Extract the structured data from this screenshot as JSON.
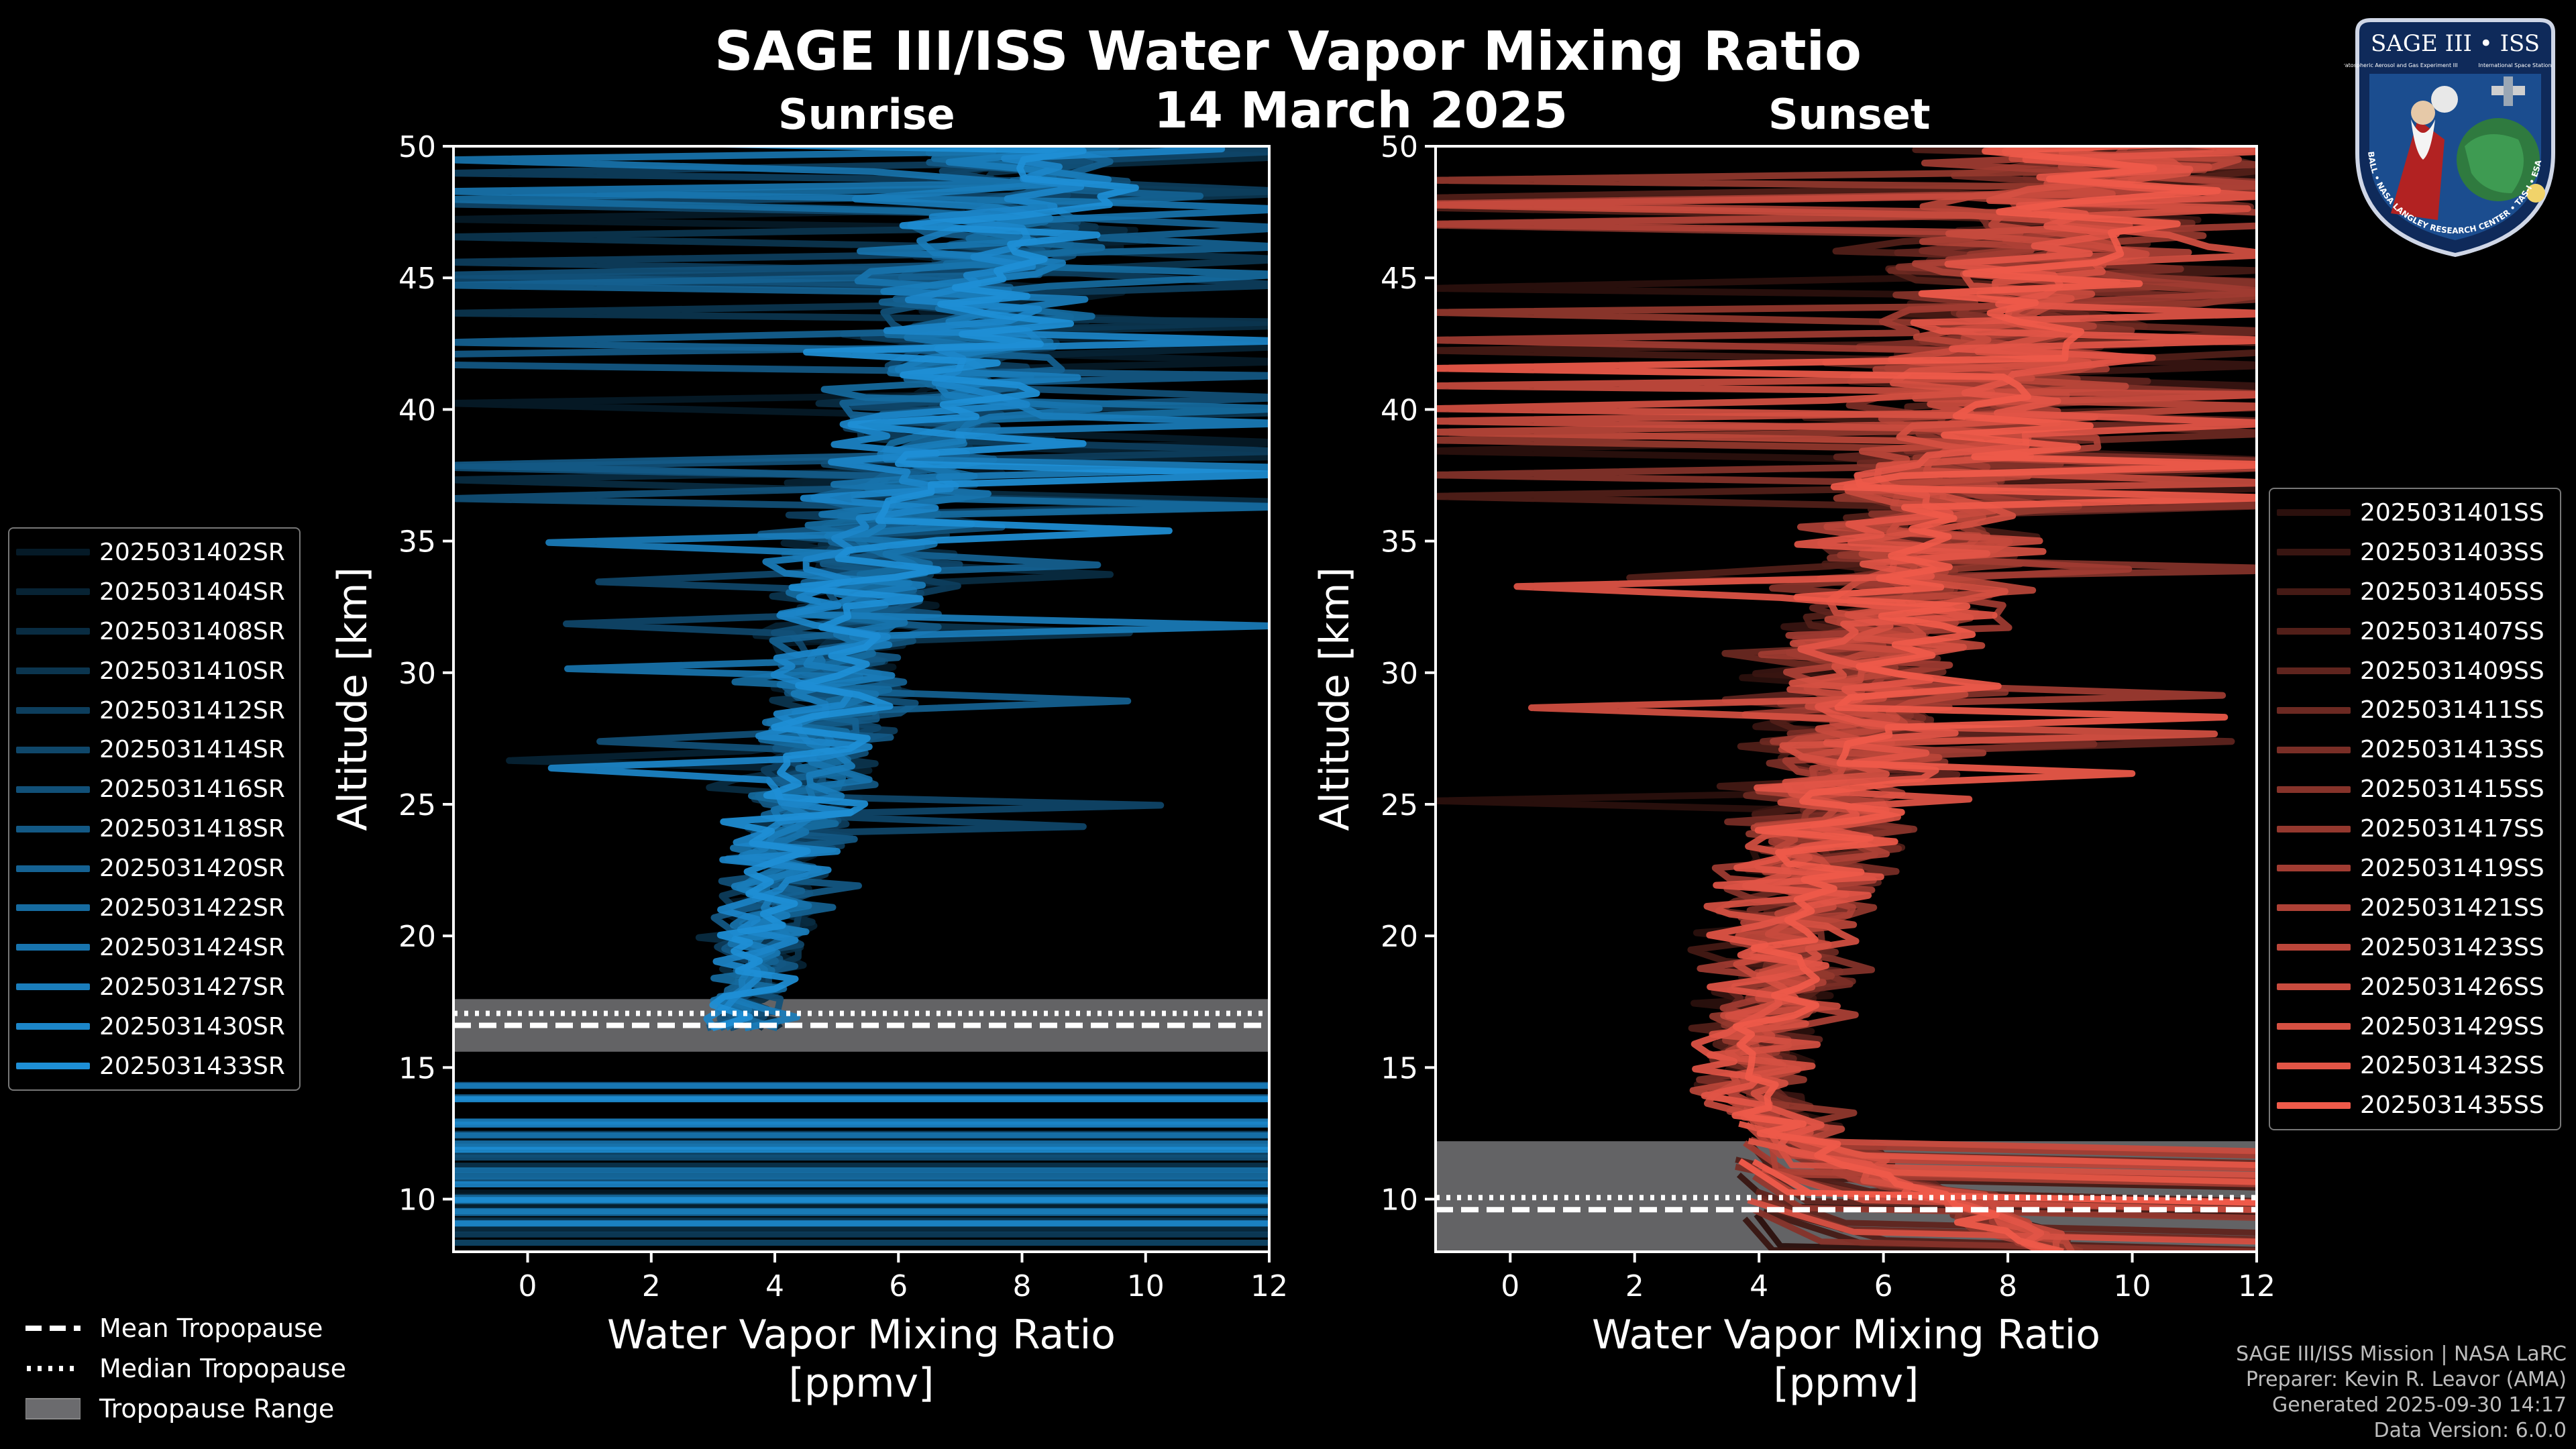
{
  "header": {
    "title": "SAGE III/ISS Water Vapor Mixing Ratio",
    "date": "14 March 2025",
    "sunrise_label": "Sunrise",
    "sunset_label": "Sunset"
  },
  "logo": {
    "text_top": "SAGE III • ISS",
    "text_sub": "Stratospheric Aerosol and Gas Experiment III",
    "text_sub2": "International Space Station",
    "ring_text": "BALL • NASA LANGLEY RESEARCH CENTER • TAS-I • ESA"
  },
  "colors": {
    "sunrise": "#1e8fd6",
    "sunset": "#ef5a4a",
    "tropopause_band": "#6b6b6e",
    "background": "#000000"
  },
  "tropo_legend": {
    "mean": "Mean Tropopause",
    "median": "Median Tropopause",
    "range": "Tropopause Range"
  },
  "footer": {
    "line1": "SAGE III/ISS Mission | NASA LaRC",
    "line2": "Preparer: Kevin R. Leavor (AMA)",
    "line3": "Generated 2025-09-30 14:17",
    "line4": "Data Version: 6.0.0"
  },
  "chart_data": [
    {
      "type": "line",
      "panel": "Sunrise",
      "xlabel_line1": "Water Vapor Mixing Ratio",
      "xlabel_line2": "[ppmv]",
      "ylabel": "Altitude [km]",
      "xlim": [
        -1.2,
        12
      ],
      "ylim": [
        8,
        50
      ],
      "xticks": [
        0,
        2,
        4,
        6,
        8,
        10,
        12
      ],
      "yticks": [
        10,
        15,
        20,
        25,
        30,
        35,
        40,
        45,
        50
      ],
      "tropopause": {
        "mean_km": 16.6,
        "median_km": 16.7,
        "range_km": [
          15.6,
          17.6
        ]
      },
      "profile_start_km": 16.5,
      "profile_start_vmr": 2.5,
      "series": [
        "2025031402SR",
        "2025031404SR",
        "2025031408SR",
        "2025031410SR",
        "2025031412SR",
        "2025031414SR",
        "2025031416SR",
        "2025031418SR",
        "2025031420SR",
        "2025031422SR",
        "2025031424SR",
        "2025031427SR",
        "2025031430SR",
        "2025031433SR"
      ],
      "approx_mean_profile": {
        "alt_km": [
          16.5,
          18,
          20,
          22,
          24,
          26,
          28,
          30,
          32,
          34,
          36,
          38,
          40,
          42,
          45,
          48,
          50
        ],
        "vmr_ppmv": [
          3.5,
          3.6,
          3.9,
          4.1,
          4.3,
          4.5,
          4.8,
          5.0,
          5.3,
          5.5,
          5.8,
          6.2,
          6.6,
          7.0,
          7.5,
          8.0,
          8.5
        ]
      }
    },
    {
      "type": "line",
      "panel": "Sunset",
      "xlabel_line1": "Water Vapor Mixing Ratio",
      "xlabel_line2": "[ppmv]",
      "ylabel": "Altitude [km]",
      "xlim": [
        -1.2,
        12
      ],
      "ylim": [
        8,
        50
      ],
      "xticks": [
        0,
        2,
        4,
        6,
        8,
        10,
        12
      ],
      "yticks": [
        10,
        15,
        20,
        25,
        30,
        35,
        40,
        45,
        50
      ],
      "tropopause": {
        "mean_km": 9.6,
        "median_km": 9.7,
        "range_km": [
          8.0,
          12.2
        ]
      },
      "profile_start_km": 8.0,
      "profile_start_vmr": 5.5,
      "series": [
        "2025031401SS",
        "2025031403SS",
        "2025031405SS",
        "2025031407SS",
        "2025031409SS",
        "2025031411SS",
        "2025031413SS",
        "2025031415SS",
        "2025031417SS",
        "2025031419SS",
        "2025031421SS",
        "2025031423SS",
        "2025031426SS",
        "2025031429SS",
        "2025031432SS",
        "2025031435SS"
      ],
      "approx_mean_profile": {
        "alt_km": [
          8,
          10,
          12,
          14,
          16,
          18,
          20,
          22,
          24,
          26,
          28,
          30,
          32,
          34,
          36,
          38,
          40,
          42,
          45,
          48,
          50
        ],
        "vmr_ppmv": [
          9.0,
          7.0,
          5.0,
          3.9,
          4.0,
          4.3,
          4.5,
          4.8,
          5.1,
          5.3,
          5.6,
          5.8,
          6.1,
          6.4,
          6.8,
          7.2,
          7.6,
          8.0,
          8.5,
          9.0,
          9.5
        ]
      }
    }
  ]
}
